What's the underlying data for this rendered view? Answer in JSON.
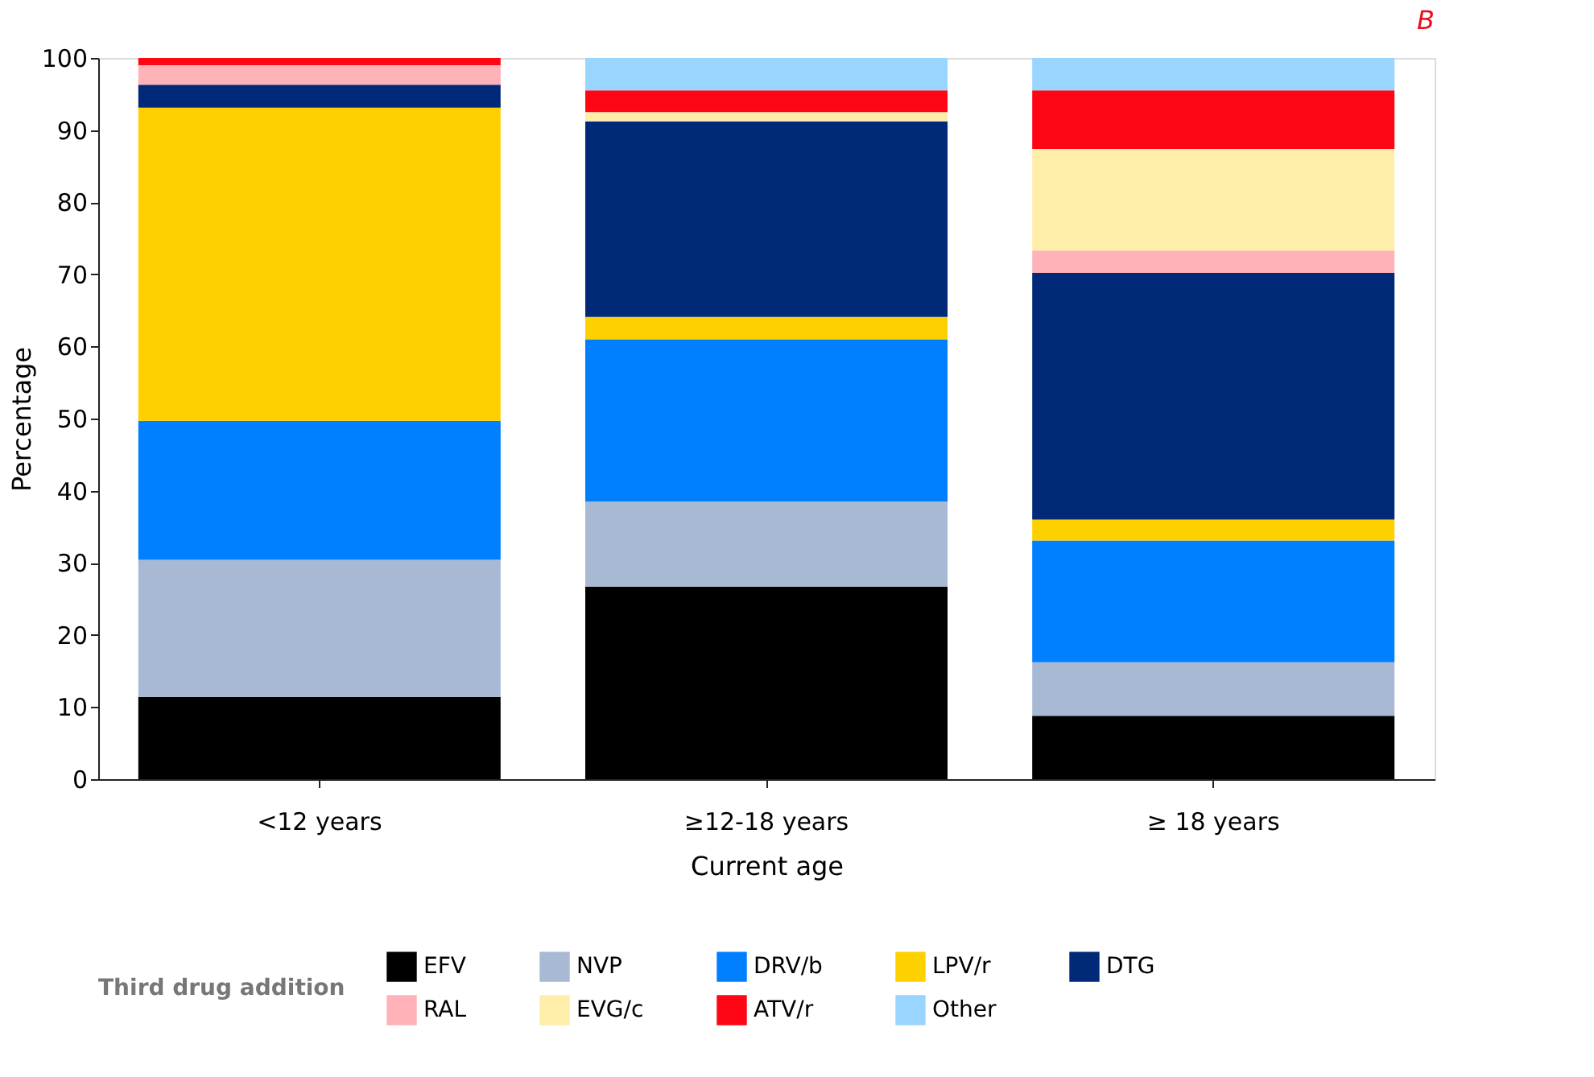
{
  "chart_data": {
    "type": "bar",
    "stacked": true,
    "title": "B",
    "categories": [
      "<12 years",
      "≥12-18 years",
      "≥ 18 years"
    ],
    "xlabel": "Current age",
    "ylabel": "Percentage",
    "legend_title": "Third drug addition",
    "ylim": [
      0,
      100
    ],
    "yticks": [
      0,
      10,
      20,
      30,
      40,
      50,
      60,
      70,
      80,
      90,
      100
    ],
    "grid": false,
    "legend": "bottom",
    "series": [
      {
        "name": "EFV",
        "color": "#000000",
        "values": [
          11.4,
          26.7,
          8.8
        ]
      },
      {
        "name": "NVP",
        "color": "#a7b9d3",
        "values": [
          19.0,
          11.8,
          7.4
        ]
      },
      {
        "name": "DRV/b",
        "color": "#0080ff",
        "values": [
          19.3,
          22.5,
          16.9
        ]
      },
      {
        "name": "LPV/r",
        "color": "#ffd000",
        "values": [
          43.4,
          3.1,
          2.9
        ]
      },
      {
        "name": "DTG",
        "color": "#002a78",
        "values": [
          3.2,
          27.1,
          34.2
        ]
      },
      {
        "name": "RAL",
        "color": "#ffb3b8",
        "values": [
          2.7,
          0,
          3.1
        ]
      },
      {
        "name": "EVG/c",
        "color": "#feeeaa",
        "values": [
          0,
          1.3,
          14.1
        ]
      },
      {
        "name": "ATV/r",
        "color": "#ff0614",
        "values": [
          1.0,
          3.0,
          8.1
        ]
      },
      {
        "name": "Other",
        "color": "#99d5ff",
        "values": [
          0,
          4.5,
          4.5
        ]
      }
    ]
  }
}
